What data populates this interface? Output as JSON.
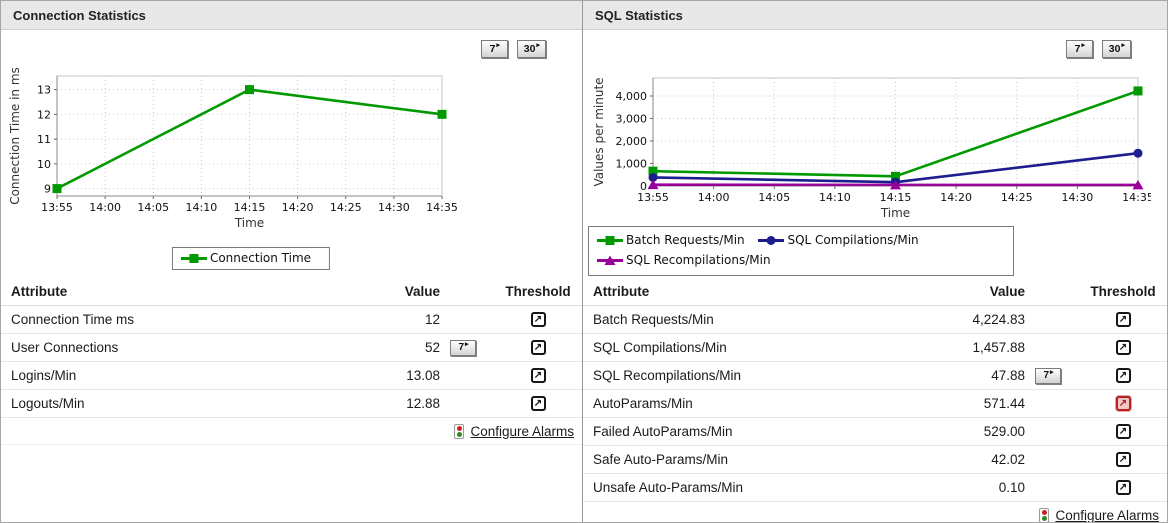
{
  "icons": {
    "threshold_arrow": "↗",
    "history_arrow": "▸"
  },
  "left_panel": {
    "title": "Connection Statistics",
    "buttons": {
      "seven": "7",
      "thirty": "30"
    },
    "table": {
      "headers": {
        "attribute": "Attribute",
        "value": "Value",
        "threshold": "Threshold"
      },
      "rows": [
        {
          "attribute": "Connection Time ms",
          "value": "12",
          "history_button": null,
          "threshold": "normal"
        },
        {
          "attribute": "User Connections",
          "value": "52",
          "history_button": "7",
          "threshold": "normal"
        },
        {
          "attribute": "Logins/Min",
          "value": "13.08",
          "history_button": null,
          "threshold": "normal"
        },
        {
          "attribute": "Logouts/Min",
          "value": "12.88",
          "history_button": null,
          "threshold": "normal"
        }
      ],
      "configure_alarms_label": "Configure Alarms"
    }
  },
  "right_panel": {
    "title": "SQL Statistics",
    "buttons": {
      "seven": "7",
      "thirty": "30"
    },
    "table": {
      "headers": {
        "attribute": "Attribute",
        "value": "Value",
        "threshold": "Threshold"
      },
      "rows": [
        {
          "attribute": "Batch Requests/Min",
          "value": "4,224.83",
          "history_button": null,
          "threshold": "normal"
        },
        {
          "attribute": "SQL Compilations/Min",
          "value": "1,457.88",
          "history_button": null,
          "threshold": "normal"
        },
        {
          "attribute": "SQL Recompilations/Min",
          "value": "47.88",
          "history_button": "7",
          "threshold": "normal"
        },
        {
          "attribute": "AutoParams/Min",
          "value": "571.44",
          "history_button": null,
          "threshold": "alert"
        },
        {
          "attribute": "Failed AutoParams/Min",
          "value": "529.00",
          "history_button": null,
          "threshold": "normal"
        },
        {
          "attribute": "Safe Auto-Params/Min",
          "value": "42.02",
          "history_button": null,
          "threshold": "normal"
        },
        {
          "attribute": "Unsafe Auto-Params/Min",
          "value": "0.10",
          "history_button": null,
          "threshold": "normal"
        }
      ],
      "configure_alarms_label": "Configure Alarms"
    }
  },
  "chart_data": [
    {
      "type": "line",
      "title": "",
      "xlabel": "Time",
      "ylabel": "Connection Time in ms",
      "categories": [
        "13:55",
        "14:00",
        "14:05",
        "14:10",
        "14:15",
        "14:20",
        "14:25",
        "14:30",
        "14:35"
      ],
      "yticks": [
        9,
        10,
        11,
        12,
        13
      ],
      "ytick_labels": [
        "9",
        "10",
        "11",
        "12",
        "13"
      ],
      "ylim": [
        8.7,
        13.55
      ],
      "grid": true,
      "legend_position": "bottom",
      "series": [
        {
          "name": "Connection Time",
          "color": "#009a00",
          "marker": "square",
          "x_indices": [
            0,
            4,
            8
          ],
          "values": [
            9,
            13,
            12
          ]
        }
      ]
    },
    {
      "type": "line",
      "title": "",
      "xlabel": "Time",
      "ylabel": "Values per minute",
      "categories": [
        "13:55",
        "14:00",
        "14:05",
        "14:10",
        "14:15",
        "14:20",
        "14:25",
        "14:30",
        "14:35"
      ],
      "yticks": [
        0,
        1000,
        2000,
        3000,
        4000
      ],
      "ytick_labels": [
        "0",
        "1,000",
        "2,000",
        "3,000",
        "4,000"
      ],
      "ylim": [
        0,
        4800
      ],
      "grid": true,
      "legend_position": "bottom",
      "series": [
        {
          "name": "Batch Requests/Min",
          "color": "#009a00",
          "marker": "square",
          "x_indices": [
            0,
            4,
            8
          ],
          "values": [
            660,
            430,
            4224.83
          ]
        },
        {
          "name": "SQL Compilations/Min",
          "color": "#1d1d8f",
          "marker": "circle",
          "x_indices": [
            0,
            4,
            8
          ],
          "values": [
            380,
            170,
            1457.88
          ]
        },
        {
          "name": "SQL Recompilations/Min",
          "color": "#990099",
          "marker": "triangle",
          "x_indices": [
            0,
            4,
            8
          ],
          "values": [
            60,
            50,
            47.88
          ]
        }
      ]
    }
  ]
}
